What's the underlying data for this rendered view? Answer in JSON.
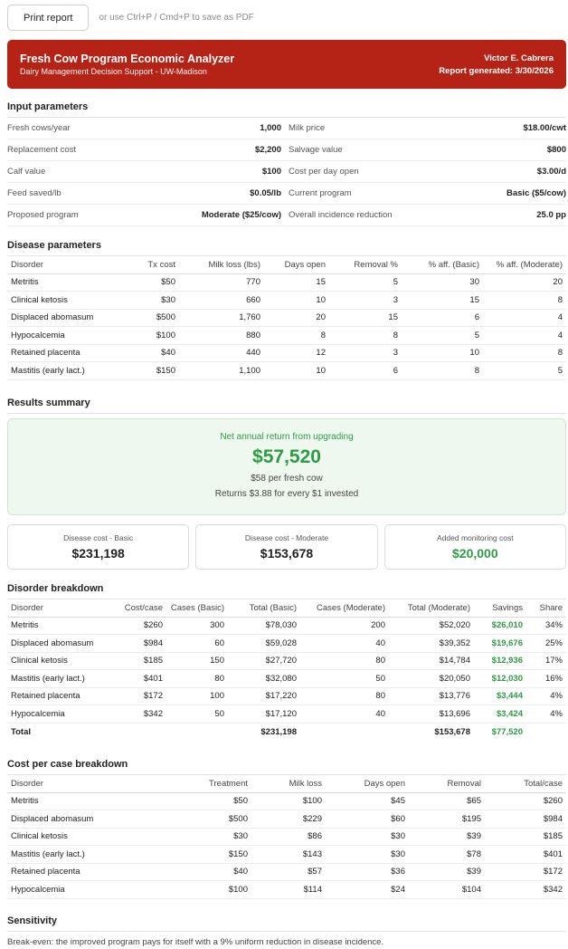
{
  "toolbar": {
    "print_label": "Print report",
    "hint": "or use Ctrl+P / Cmd+P to save as PDF"
  },
  "header": {
    "title": "Fresh Cow Program Economic Analyzer",
    "subtitle": "Dairy Management Decision Support - UW-Madison",
    "author": "Victor E. Cabrera",
    "generated": "Report generated: 3/30/2026",
    "bg_color": "#b52317"
  },
  "inputs": {
    "title": "Input parameters",
    "rows": [
      {
        "l_label": "Fresh cows/year",
        "l_value": "1,000",
        "r_label": "Milk price",
        "r_value": "$18.00/cwt"
      },
      {
        "l_label": "Replacement cost",
        "l_value": "$2,200",
        "r_label": "Salvage value",
        "r_value": "$800"
      },
      {
        "l_label": "Calf value",
        "l_value": "$100",
        "r_label": "Cost per day open",
        "r_value": "$3.00/d"
      },
      {
        "l_label": "Feed saved/lb",
        "l_value": "$0.05/lb",
        "r_label": "Current program",
        "r_value": "Basic ($5/cow)"
      },
      {
        "l_label": "Proposed program",
        "l_value": "Moderate ($25/cow)",
        "r_label": "Overall incidence reduction",
        "r_value": "25.0 pp"
      }
    ]
  },
  "disease": {
    "title": "Disease parameters",
    "headers": [
      "Disorder",
      "Tx cost",
      "Milk loss (lbs)",
      "Days open",
      "Removal %",
      "% aff. (Basic)",
      "% aff. (Moderate)"
    ],
    "rows": [
      [
        "Metritis",
        "$50",
        "770",
        "15",
        "5",
        "30",
        "20"
      ],
      [
        "Clinical ketosis",
        "$30",
        "660",
        "10",
        "3",
        "15",
        "8"
      ],
      [
        "Displaced abomasum",
        "$500",
        "1,760",
        "20",
        "15",
        "6",
        "4"
      ],
      [
        "Hypocalcemia",
        "$100",
        "880",
        "8",
        "8",
        "5",
        "4"
      ],
      [
        "Retained placenta",
        "$40",
        "440",
        "12",
        "3",
        "10",
        "8"
      ],
      [
        "Mastitis (early lact.)",
        "$150",
        "1,100",
        "10",
        "6",
        "8",
        "5"
      ]
    ]
  },
  "results": {
    "title": "Results summary",
    "net_label": "Net annual return from upgrading",
    "net_value": "$57,520",
    "per_cow": "$58 per fresh cow",
    "roi": "Returns $3.88 for every $1 invested",
    "accent_color": "#2e9b45",
    "cards": [
      {
        "label": "Disease cost - Basic",
        "value": "$231,198"
      },
      {
        "label": "Disease cost - Moderate",
        "value": "$153,678"
      },
      {
        "label": "Added monitoring cost",
        "value": "$20,000"
      }
    ]
  },
  "breakdown": {
    "title": "Disorder breakdown",
    "headers": [
      "Disorder",
      "Cost/case",
      "Cases (Basic)",
      "Total (Basic)",
      "Cases (Moderate)",
      "Total (Moderate)",
      "Savings",
      "Share"
    ],
    "rows": [
      [
        "Metritis",
        "$260",
        "300",
        "$78,030",
        "200",
        "$52,020",
        "$26,010",
        "34%"
      ],
      [
        "Displaced abomasum",
        "$984",
        "60",
        "$59,028",
        "40",
        "$39,352",
        "$19,676",
        "25%"
      ],
      [
        "Clinical ketosis",
        "$185",
        "150",
        "$27,720",
        "80",
        "$14,784",
        "$12,936",
        "17%"
      ],
      [
        "Mastitis (early lact.)",
        "$401",
        "80",
        "$32,080",
        "50",
        "$20,050",
        "$12,030",
        "16%"
      ],
      [
        "Retained placenta",
        "$172",
        "100",
        "$17,220",
        "80",
        "$13,776",
        "$3,444",
        "4%"
      ],
      [
        "Hypocalcemia",
        "$342",
        "50",
        "$17,120",
        "40",
        "$13,696",
        "$3,424",
        "4%"
      ]
    ],
    "total": {
      "label": "Total",
      "total_basic": "$231,198",
      "total_moderate": "$153,678",
      "savings": "$77,520"
    }
  },
  "cpc": {
    "title": "Cost per case breakdown",
    "headers": [
      "Disorder",
      "Treatment",
      "Milk loss",
      "Days open",
      "Removal",
      "Total/case"
    ],
    "rows": [
      [
        "Metritis",
        "$50",
        "$100",
        "$45",
        "$65",
        "$260"
      ],
      [
        "Displaced abomasum",
        "$500",
        "$229",
        "$60",
        "$195",
        "$984"
      ],
      [
        "Clinical ketosis",
        "$30",
        "$86",
        "$30",
        "$39",
        "$185"
      ],
      [
        "Mastitis (early lact.)",
        "$150",
        "$143",
        "$30",
        "$78",
        "$401"
      ],
      [
        "Retained placenta",
        "$40",
        "$57",
        "$36",
        "$39",
        "$172"
      ],
      [
        "Hypocalcemia",
        "$100",
        "$114",
        "$24",
        "$104",
        "$342"
      ]
    ]
  },
  "sensitivity": {
    "title": "Sensitivity",
    "text": "Break-even: the improved program pays for itself with a 9% uniform reduction in disease incidence."
  }
}
